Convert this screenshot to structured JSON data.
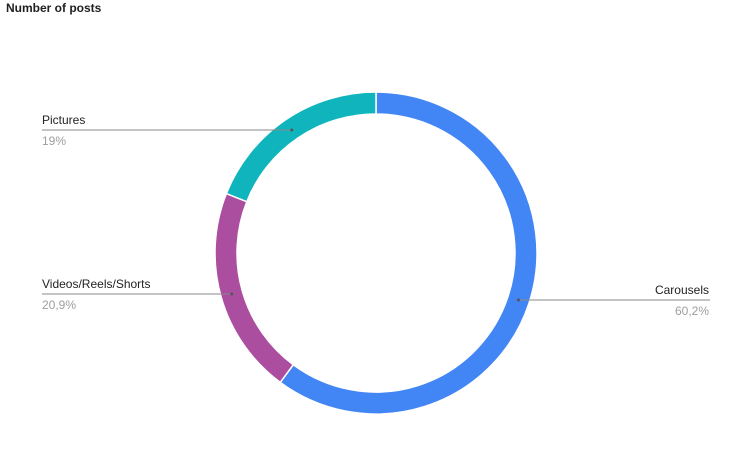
{
  "chart_data": {
    "type": "pie",
    "donut": true,
    "title": "Number of posts",
    "legend": "none",
    "slices": [
      {
        "label": "Carousels",
        "value": 60.2,
        "display": "60,2%",
        "color": "#4285f4"
      },
      {
        "label": "Videos/Reels/Shorts",
        "value": 20.9,
        "display": "20,9%",
        "color": "#ab4ea0"
      },
      {
        "label": "Pictures",
        "value": 19,
        "display": "19%",
        "color": "#0fb4bd"
      }
    ]
  }
}
